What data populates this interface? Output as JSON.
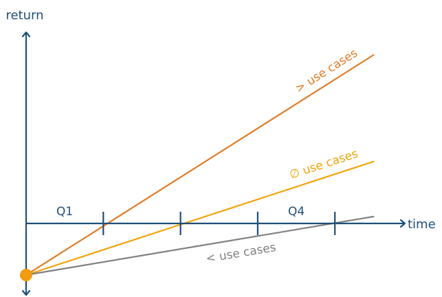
{
  "chart_data": {
    "type": "line",
    "ylabel": "return",
    "xlabel": "time",
    "colors": {
      "axis": "#1f4e79",
      "origin": "#f39c12"
    },
    "x_ticks": [
      1,
      2,
      3,
      4
    ],
    "tick_labels": [
      {
        "label": "Q1",
        "x": 0.5
      },
      {
        "label": "Q4",
        "x": 3.5
      }
    ],
    "xlim": [
      0,
      4.5
    ],
    "ylim": [
      -0.75,
      2.8
    ],
    "series": [
      {
        "name": "> use cases",
        "color": "#e07b24",
        "x": [
          0,
          4.5
        ],
        "y": [
          -0.75,
          2.45
        ]
      },
      {
        "name": "∅ use cases",
        "color": "#f0a30a",
        "x": [
          0,
          4.5
        ],
        "y": [
          -0.75,
          0.9
        ]
      },
      {
        "name": "< use cases",
        "color": "#808080",
        "x": [
          0,
          4.5
        ],
        "y": [
          -0.75,
          0.1
        ]
      }
    ]
  }
}
